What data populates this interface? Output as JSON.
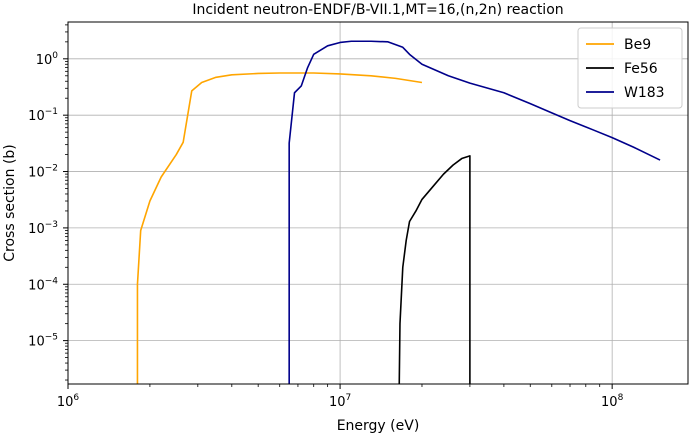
{
  "chart_data": {
    "type": "line",
    "title": "Incident neutron-ENDF/B-VII.1,MT=16,(n,2n) reaction",
    "xlabel": "Energy (eV)",
    "ylabel": "Cross section (b)",
    "xscale": "log",
    "yscale": "log",
    "xlim": [
      1000000,
      190000000
    ],
    "ylim": [
      1.7e-06,
      4.5
    ],
    "grid": true,
    "legend_position": "top-right",
    "x_ticks": [
      {
        "value": 1000000,
        "base": "10",
        "exp": "6"
      },
      {
        "value": 10000000,
        "base": "10",
        "exp": "7"
      },
      {
        "value": 100000000,
        "base": "10",
        "exp": "8"
      }
    ],
    "y_ticks": [
      {
        "value": 1e-05,
        "base": "10",
        "exp": "−5"
      },
      {
        "value": 0.0001,
        "base": "10",
        "exp": "−4"
      },
      {
        "value": 0.001,
        "base": "10",
        "exp": "−3"
      },
      {
        "value": 0.01,
        "base": "10",
        "exp": "−2"
      },
      {
        "value": 0.1,
        "base": "10",
        "exp": "−1"
      },
      {
        "value": 1,
        "base": "10",
        "exp": "0"
      }
    ],
    "series": [
      {
        "name": "Be9",
        "color": "#ffa500",
        "points": [
          [
            1800000,
            1.7e-06
          ],
          [
            1800000,
            0.0001
          ],
          [
            1850000,
            0.0009
          ],
          [
            2000000,
            0.003
          ],
          [
            2200000,
            0.008
          ],
          [
            2500000,
            0.02
          ],
          [
            2650000,
            0.033
          ],
          [
            2850000,
            0.27
          ],
          [
            3100000,
            0.38
          ],
          [
            3500000,
            0.47
          ],
          [
            4000000,
            0.52
          ],
          [
            5000000,
            0.55
          ],
          [
            6000000,
            0.56
          ],
          [
            8000000,
            0.56
          ],
          [
            10000000,
            0.54
          ],
          [
            13000000,
            0.5
          ],
          [
            16000000,
            0.45
          ],
          [
            20000000,
            0.38
          ]
        ]
      },
      {
        "name": "Fe56",
        "color": "#000000",
        "points": [
          [
            16500000,
            1.7e-06
          ],
          [
            16600000,
            2e-05
          ],
          [
            17000000,
            0.0002
          ],
          [
            17500000,
            0.0006
          ],
          [
            18000000,
            0.0013
          ],
          [
            19000000,
            0.002
          ],
          [
            20000000,
            0.0032
          ],
          [
            22000000,
            0.0055
          ],
          [
            24000000,
            0.009
          ],
          [
            26000000,
            0.013
          ],
          [
            28000000,
            0.017
          ],
          [
            30000000,
            0.019
          ],
          [
            30000000,
            1.7e-06
          ]
        ]
      },
      {
        "name": "W183",
        "color": "#00008b",
        "points": [
          [
            6500000,
            1.7e-06
          ],
          [
            6500000,
            0.032
          ],
          [
            6800000,
            0.25
          ],
          [
            7200000,
            0.33
          ],
          [
            7600000,
            0.7
          ],
          [
            8000000,
            1.2
          ],
          [
            9000000,
            1.7
          ],
          [
            10000000,
            1.95
          ],
          [
            11000000,
            2.05
          ],
          [
            13000000,
            2.05
          ],
          [
            15000000,
            2.0
          ],
          [
            17000000,
            1.6
          ],
          [
            18000000,
            1.2
          ],
          [
            20000000,
            0.8
          ],
          [
            25000000,
            0.5
          ],
          [
            30000000,
            0.37
          ],
          [
            40000000,
            0.25
          ],
          [
            50000000,
            0.16
          ],
          [
            60000000,
            0.11
          ],
          [
            70000000,
            0.08
          ],
          [
            85000000,
            0.055
          ],
          [
            100000000,
            0.04
          ],
          [
            120000000,
            0.027
          ],
          [
            150000000,
            0.016
          ]
        ]
      }
    ]
  }
}
